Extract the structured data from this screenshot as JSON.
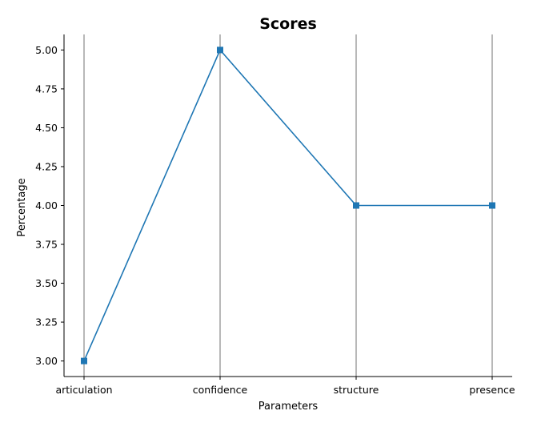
{
  "chart_data": {
    "type": "line",
    "title": "Scores",
    "xlabel": "Parameters",
    "ylabel": "Percentage",
    "categories": [
      "articulation",
      "confidence",
      "structure",
      "presence"
    ],
    "series": [
      {
        "values": [
          3,
          5,
          4,
          4
        ],
        "marker": "square"
      }
    ],
    "ylim": [
      2.9,
      5.1
    ],
    "yticks": [
      "3.00",
      "3.25",
      "3.50",
      "3.75",
      "4.00",
      "4.25",
      "4.50",
      "4.75",
      "5.00"
    ],
    "grid": "vertical",
    "color": "#1f77b4"
  }
}
